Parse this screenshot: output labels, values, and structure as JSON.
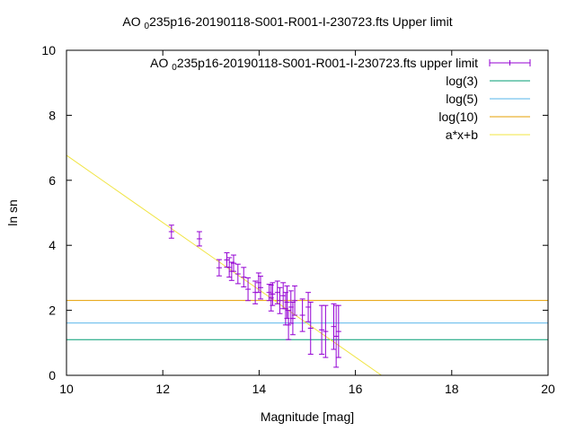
{
  "chart_data": {
    "type": "scatter",
    "title_pre": "AO",
    "title_sub": "0",
    "title_post": "235p16-20190118-S001-R001-I-230723.fts Upper limit",
    "xlabel": "Magnitude [mag]",
    "ylabel": "ln sn",
    "xlim": [
      10,
      20
    ],
    "ylim": [
      0,
      10
    ],
    "xticks": [
      "10",
      "12",
      "14",
      "16",
      "18",
      "20"
    ],
    "yticks": [
      "0",
      "2",
      "4",
      "6",
      "8",
      "10"
    ],
    "grid": false,
    "legend_position": "top-right",
    "legend": [
      {
        "pre": "AO",
        "sub": "0",
        "post": "235p16-20190118-S001-R001-I-230723.fts upper limit",
        "kind": "errorbar",
        "color": "#9400d3"
      },
      {
        "label": "log(3)",
        "kind": "line",
        "color": "#009e73"
      },
      {
        "label": "log(5)",
        "kind": "line",
        "color": "#56b4e9"
      },
      {
        "label": "log(10)",
        "kind": "line",
        "color": "#e69f00"
      },
      {
        "label": "a*x+b",
        "kind": "line",
        "color": "#f0e442"
      }
    ],
    "series": [
      {
        "kind": "errorbar",
        "color": "#9400d3",
        "points": [
          {
            "x": 12.18,
            "y": 4.42,
            "err": 0.2
          },
          {
            "x": 12.76,
            "y": 4.2,
            "err": 0.22
          },
          {
            "x": 13.17,
            "y": 3.31,
            "err": 0.25
          },
          {
            "x": 13.33,
            "y": 3.55,
            "err": 0.22
          },
          {
            "x": 13.38,
            "y": 3.32,
            "err": 0.3
          },
          {
            "x": 13.43,
            "y": 3.2,
            "err": 0.28
          },
          {
            "x": 13.47,
            "y": 3.45,
            "err": 0.25
          },
          {
            "x": 13.56,
            "y": 3.12,
            "err": 0.3
          },
          {
            "x": 13.68,
            "y": 3.02,
            "err": 0.3
          },
          {
            "x": 13.77,
            "y": 2.65,
            "err": 0.35
          },
          {
            "x": 13.92,
            "y": 2.55,
            "err": 0.35
          },
          {
            "x": 13.99,
            "y": 2.85,
            "err": 0.3
          },
          {
            "x": 14.03,
            "y": 2.7,
            "err": 0.35
          },
          {
            "x": 14.21,
            "y": 2.55,
            "err": 0.25
          },
          {
            "x": 14.25,
            "y": 2.38,
            "err": 0.4
          },
          {
            "x": 14.28,
            "y": 2.5,
            "err": 0.35
          },
          {
            "x": 14.38,
            "y": 2.55,
            "err": 0.35
          },
          {
            "x": 14.43,
            "y": 2.3,
            "err": 0.4
          },
          {
            "x": 14.5,
            "y": 2.45,
            "err": 0.4
          },
          {
            "x": 14.55,
            "y": 2.05,
            "err": 0.5
          },
          {
            "x": 14.58,
            "y": 2.25,
            "err": 0.5
          },
          {
            "x": 14.61,
            "y": 1.55,
            "err": 0.45
          },
          {
            "x": 14.66,
            "y": 2.1,
            "err": 0.5
          },
          {
            "x": 14.7,
            "y": 1.75,
            "err": 0.5
          },
          {
            "x": 14.74,
            "y": 2.3,
            "err": 0.45
          },
          {
            "x": 14.9,
            "y": 1.85,
            "err": 0.5
          },
          {
            "x": 15.02,
            "y": 2.1,
            "err": 0.45
          },
          {
            "x": 15.07,
            "y": 1.45,
            "err": 0.8
          },
          {
            "x": 15.3,
            "y": 1.4,
            "err": 0.75
          },
          {
            "x": 15.38,
            "y": 1.35,
            "err": 0.8
          },
          {
            "x": 15.55,
            "y": 1.5,
            "err": 0.7
          },
          {
            "x": 15.6,
            "y": 1.2,
            "err": 0.95
          },
          {
            "x": 15.65,
            "y": 1.35,
            "err": 0.8
          }
        ]
      },
      {
        "kind": "hline",
        "name": "log(3)",
        "y": 1.0986,
        "color": "#009e73"
      },
      {
        "kind": "hline",
        "name": "log(5)",
        "y": 1.6094,
        "color": "#56b4e9"
      },
      {
        "kind": "hline",
        "name": "log(10)",
        "y": 2.3026,
        "color": "#e69f00"
      },
      {
        "kind": "fitline",
        "name": "a*x+b",
        "a": -1.035,
        "b": 17.12,
        "color": "#f0e442"
      }
    ]
  }
}
